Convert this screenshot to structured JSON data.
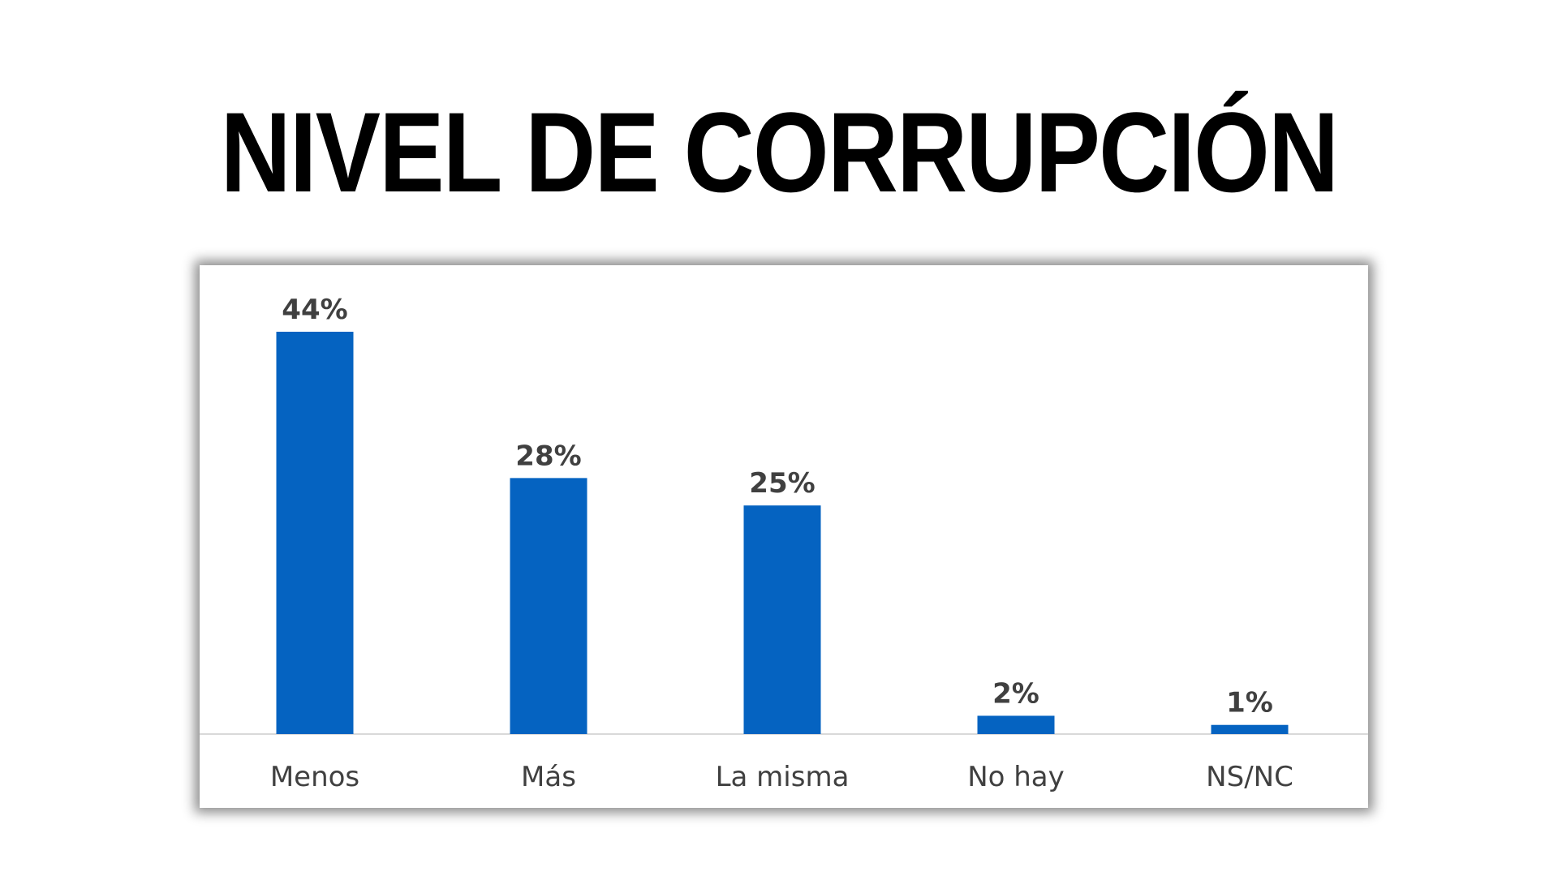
{
  "title": "NIVEL DE CORRUPCIÓN",
  "colors": {
    "bar": "#0563C1",
    "data_label": "#404040",
    "category_label": "#404040",
    "axis_line": "#D9D9D9"
  },
  "chart_data": {
    "type": "bar",
    "categories": [
      "Menos",
      "Más",
      "La misma",
      "No hay",
      "NS/NC"
    ],
    "values": [
      44,
      28,
      25,
      2,
      1
    ],
    "value_labels": [
      "44%",
      "28%",
      "25%",
      "2%",
      "1%"
    ],
    "ylim": [
      0,
      50
    ],
    "grid": false,
    "legend": "none"
  }
}
